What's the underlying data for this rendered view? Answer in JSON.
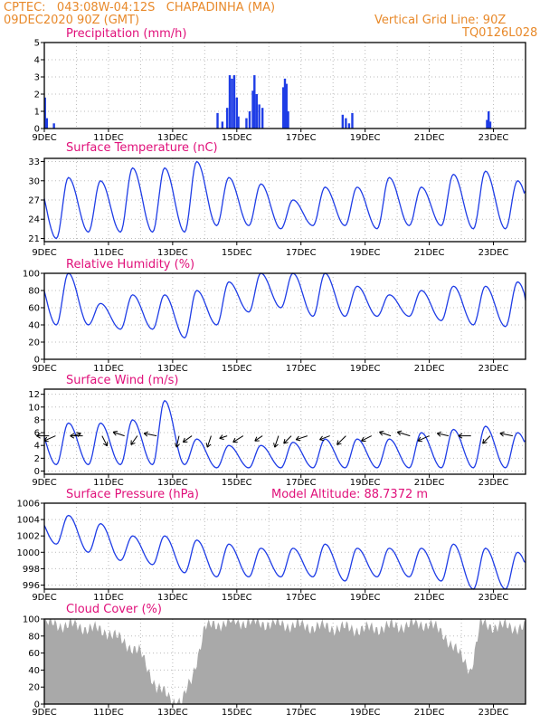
{
  "header": {
    "line1": "CPTEC:   043:08W-04:12S   CHAPADINHA (MA)",
    "line2": "09DEC2020 90Z (GMT)",
    "grid_note": "Vertical Grid Line: 90Z",
    "code": "TQ0126L028"
  },
  "colors": {
    "header": "#e8892a",
    "title": "#e0107a",
    "line": "#1f3de6",
    "bar": "#1f3de6",
    "cloud": "#a9a9a9",
    "arrow": "#000000"
  },
  "chart_data": [
    {
      "type": "bar",
      "title": "Precipitation (mm/h)",
      "ylim": [
        0,
        5
      ],
      "yticks": [
        0,
        1,
        2,
        3,
        4,
        5
      ],
      "x_ticks": [
        "9DEC",
        "11DEC",
        "13DEC",
        "15DEC",
        "17DEC",
        "19DEC",
        "21DEC",
        "23DEC"
      ],
      "x_range_days": [
        0,
        15
      ],
      "events": [
        {
          "day": 0.02,
          "value": 1.8
        },
        {
          "day": 0.08,
          "value": 0.6
        },
        {
          "day": 0.3,
          "value": 0.3
        },
        {
          "day": 5.4,
          "value": 0.9
        },
        {
          "day": 5.55,
          "value": 0.4
        },
        {
          "day": 5.7,
          "value": 1.2
        },
        {
          "day": 5.78,
          "value": 3.1
        },
        {
          "day": 5.85,
          "value": 2.9
        },
        {
          "day": 5.92,
          "value": 3.1
        },
        {
          "day": 6.0,
          "value": 1.8
        },
        {
          "day": 6.05,
          "value": 0.7
        },
        {
          "day": 6.3,
          "value": 0.6
        },
        {
          "day": 6.4,
          "value": 1.0
        },
        {
          "day": 6.5,
          "value": 2.2
        },
        {
          "day": 6.55,
          "value": 3.1
        },
        {
          "day": 6.62,
          "value": 2.0
        },
        {
          "day": 6.7,
          "value": 1.4
        },
        {
          "day": 6.8,
          "value": 1.2
        },
        {
          "day": 7.45,
          "value": 2.4
        },
        {
          "day": 7.5,
          "value": 2.9
        },
        {
          "day": 7.55,
          "value": 2.6
        },
        {
          "day": 7.6,
          "value": 1.0
        },
        {
          "day": 9.3,
          "value": 0.8
        },
        {
          "day": 9.4,
          "value": 0.6
        },
        {
          "day": 9.5,
          "value": 0.3
        },
        {
          "day": 9.6,
          "value": 0.9
        },
        {
          "day": 13.8,
          "value": 0.5
        },
        {
          "day": 13.85,
          "value": 1.0
        },
        {
          "day": 13.9,
          "value": 0.4
        }
      ]
    },
    {
      "type": "line",
      "title": "Surface Temperature (nC)",
      "ylim": [
        20.5,
        33.5
      ],
      "yticks": [
        21,
        24,
        27,
        30,
        33
      ],
      "x_ticks": [
        "9DEC",
        "11DEC",
        "13DEC",
        "15DEC",
        "17DEC",
        "19DEC",
        "21DEC",
        "23DEC"
      ],
      "x_range_days": [
        0,
        15
      ],
      "daily_extremes": {
        "min": [
          21,
          22,
          22,
          22,
          22,
          23,
          23,
          22.5,
          23,
          23,
          22.5,
          23,
          23,
          22.5,
          22.5
        ],
        "max": [
          30.5,
          30,
          32,
          32,
          33,
          30.5,
          29.5,
          27,
          29,
          29,
          30.5,
          29,
          31,
          31.5,
          30
        ]
      }
    },
    {
      "type": "line",
      "title": "Relative Humidity (%)",
      "ylim": [
        0,
        100
      ],
      "yticks": [
        0,
        20,
        40,
        60,
        80,
        100
      ],
      "x_ticks": [
        "9DEC",
        "11DEC",
        "13DEC",
        "15DEC",
        "17DEC",
        "19DEC",
        "21DEC",
        "23DEC"
      ],
      "x_range_days": [
        0,
        15
      ],
      "daily_extremes": {
        "min": [
          40,
          40,
          35,
          35,
          25,
          40,
          55,
          60,
          50,
          50,
          50,
          50,
          45,
          40,
          38
        ],
        "max": [
          100,
          65,
          75,
          75,
          80,
          90,
          100,
          100,
          100,
          85,
          75,
          80,
          85,
          85,
          90
        ]
      }
    },
    {
      "type": "line",
      "title": "Surface Wind (m/s)",
      "ylim": [
        -0.5,
        12.8
      ],
      "yticks": [
        0,
        2,
        4,
        6,
        8,
        10,
        12
      ],
      "x_ticks": [
        "9DEC",
        "11DEC",
        "13DEC",
        "15DEC",
        "17DEC",
        "19DEC",
        "21DEC",
        "23DEC"
      ],
      "x_range_days": [
        0,
        15
      ],
      "daily_extremes": {
        "min": [
          1,
          1,
          1,
          1,
          1,
          0.5,
          0.5,
          0.5,
          0.5,
          0.5,
          0.5,
          0.5,
          0.5,
          0.5,
          0.5
        ],
        "max": [
          7.5,
          7.5,
          8,
          11,
          5,
          4,
          4,
          4.5,
          5,
          5,
          5,
          6,
          6.5,
          7,
          6
        ]
      },
      "wind_vectors": [
        {
          "day": 0.15,
          "u": -1,
          "v": 0
        },
        {
          "day": 0.35,
          "u": -0.9,
          "v": -0.4
        },
        {
          "day": 0.9,
          "u": 0.6,
          "v": 0.2
        },
        {
          "day": 1.2,
          "u": -1,
          "v": 0
        },
        {
          "day": 1.8,
          "u": 0.4,
          "v": -0.8
        },
        {
          "day": 2.5,
          "u": -0.9,
          "v": 0.3
        },
        {
          "day": 2.9,
          "u": -0.5,
          "v": -0.7
        },
        {
          "day": 3.5,
          "u": -1,
          "v": 0.2
        },
        {
          "day": 4.2,
          "u": -0.2,
          "v": -0.9
        },
        {
          "day": 4.6,
          "u": -0.7,
          "v": -0.5
        },
        {
          "day": 5.2,
          "u": -0.3,
          "v": -0.9
        },
        {
          "day": 5.7,
          "u": -0.6,
          "v": -0.2
        },
        {
          "day": 6.2,
          "u": -0.8,
          "v": -0.5
        },
        {
          "day": 6.8,
          "u": -0.6,
          "v": -0.4
        },
        {
          "day": 7.3,
          "u": -0.3,
          "v": -0.9
        },
        {
          "day": 7.7,
          "u": -0.6,
          "v": -0.6
        },
        {
          "day": 8.2,
          "u": -0.9,
          "v": -0.3
        },
        {
          "day": 8.9,
          "u": -0.8,
          "v": -0.3
        },
        {
          "day": 9.4,
          "u": -0.7,
          "v": -0.7
        },
        {
          "day": 10.2,
          "u": -0.8,
          "v": -0.4
        },
        {
          "day": 10.8,
          "u": -0.9,
          "v": 0.3
        },
        {
          "day": 11.4,
          "u": -1,
          "v": 0.3
        },
        {
          "day": 12.0,
          "u": -0.9,
          "v": -0.4
        },
        {
          "day": 12.6,
          "u": -0.9,
          "v": 0.2
        },
        {
          "day": 13.3,
          "u": -1,
          "v": 0
        },
        {
          "day": 13.9,
          "u": -0.6,
          "v": -0.6
        },
        {
          "day": 14.6,
          "u": -1,
          "v": 0.2
        }
      ]
    },
    {
      "type": "line",
      "title": "Surface Pressure (hPa)",
      "annotation": "Model Altitude: 88.7372  m",
      "ylim": [
        995.5,
        1006
      ],
      "yticks": [
        996,
        998,
        1000,
        1002,
        1004,
        1006
      ],
      "x_ticks": [
        "9DEC",
        "11DEC",
        "13DEC",
        "15DEC",
        "17DEC",
        "19DEC",
        "21DEC",
        "23DEC"
      ],
      "x_range_days": [
        0,
        15
      ],
      "daily_extremes": {
        "min": [
          1001,
          1000,
          999,
          998.5,
          997.5,
          997,
          997,
          997,
          997,
          996.5,
          997,
          997,
          996.5,
          995.5,
          995.5
        ],
        "max": [
          1004.5,
          1003.5,
          1002,
          1002,
          1001.5,
          1001,
          1000.5,
          1000.5,
          1001,
          1000.5,
          1000.5,
          1000.5,
          1001,
          1000.5,
          1000
        ]
      }
    },
    {
      "type": "area",
      "title": "Cloud Cover (%)",
      "ylim": [
        0,
        100
      ],
      "yticks": [
        0,
        20,
        40,
        60,
        80,
        100
      ],
      "x_ticks": [
        "9DEC",
        "11DEC",
        "13DEC",
        "15DEC",
        "17DEC",
        "19DEC",
        "21DEC",
        "23DEC"
      ],
      "x_range_days": [
        0,
        15
      ],
      "keyframes": [
        [
          0,
          95
        ],
        [
          1,
          92
        ],
        [
          2,
          85
        ],
        [
          3,
          60
        ],
        [
          3.5,
          20
        ],
        [
          4,
          5
        ],
        [
          4.3,
          3
        ],
        [
          4.6,
          30
        ],
        [
          5,
          90
        ],
        [
          5.5,
          95
        ],
        [
          6,
          97
        ],
        [
          7,
          95
        ],
        [
          8,
          92
        ],
        [
          9,
          90
        ],
        [
          10,
          88
        ],
        [
          11,
          92
        ],
        [
          12,
          95
        ],
        [
          12.5,
          80
        ],
        [
          13.3,
          40
        ],
        [
          13.6,
          95
        ],
        [
          14,
          92
        ],
        [
          15,
          90
        ]
      ]
    }
  ]
}
